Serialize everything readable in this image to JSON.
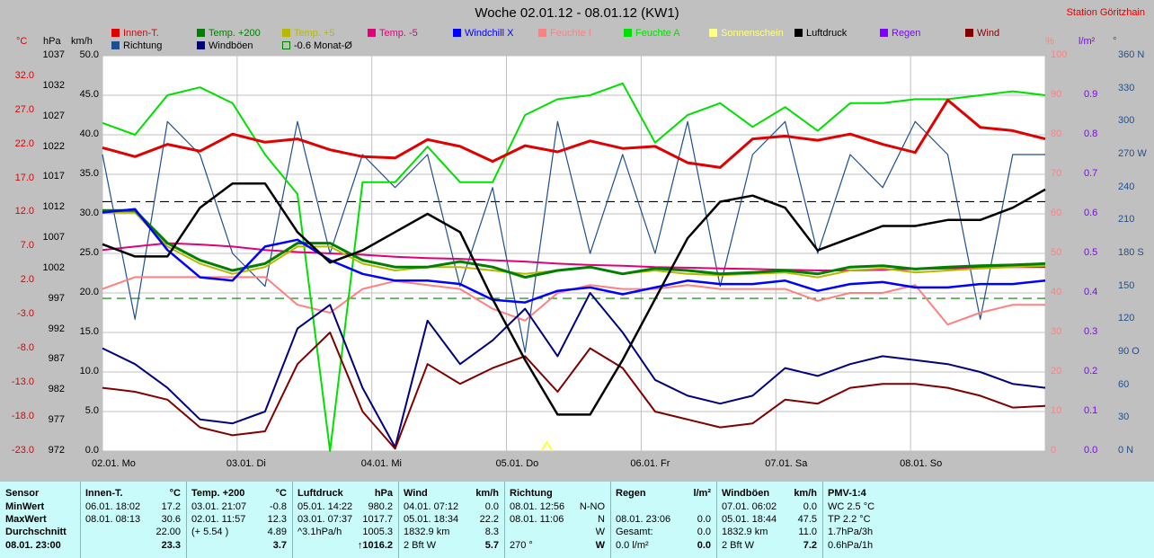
{
  "title": "Woche 02.01.12 - 08.01.12 (KW1)",
  "station": "Station Göritzhain",
  "units": {
    "celsius": "°C",
    "hpa": "hPa",
    "kmh": "km/h",
    "percent": "%",
    "lm2": "l/m²",
    "deg": "°"
  },
  "legend": [
    {
      "label": "Innen-T.",
      "color": "#e00000"
    },
    {
      "label": "Temp. +200",
      "color": "#008000"
    },
    {
      "label": "Temp. +5",
      "color": "#b8b800"
    },
    {
      "label": "Temp. -5",
      "color": "#e0007a"
    },
    {
      "label": "Windchill X",
      "color": "#0000ff"
    },
    {
      "label": "Feuchte I",
      "color": "#ff8080"
    },
    {
      "label": "Feuchte A",
      "color": "#00e000"
    },
    {
      "label": "Sonnenschein",
      "color": "#ffff80"
    },
    {
      "label": "Luftdruck",
      "color": "#000000"
    },
    {
      "label": "Regen",
      "color": "#8000ff"
    },
    {
      "label": "Wind",
      "color": "#800000"
    },
    {
      "label": "Richtung",
      "color": "#1f4f8f"
    },
    {
      "label": "Windböen",
      "color": "#000080"
    },
    {
      "label": "-0.6 Monat-Ø",
      "color": "#008000"
    }
  ],
  "chart_data": {
    "type": "line",
    "x_labels": [
      "02.01. Mo",
      "03.01. Di",
      "04.01. Mi",
      "05.01. Do",
      "06.01. Fr",
      "07.01. Sa",
      "08.01. So"
    ],
    "axes": {
      "temp_c": [
        32.0,
        27.0,
        22.0,
        17.0,
        12.0,
        7.0,
        2.0,
        -3.0,
        -8.0,
        -13.0,
        -18.0,
        -23.0
      ],
      "pressure_hpa": [
        1037,
        1032,
        1027,
        1022,
        1017,
        1012,
        1007,
        1002,
        997,
        992,
        987,
        982,
        977,
        972
      ],
      "wind_kmh": [
        50.0,
        45.0,
        40.0,
        35.0,
        30.0,
        25.0,
        20.0,
        15.0,
        10.0,
        5.0,
        0.0
      ],
      "humidity_pct": [
        100,
        90,
        80,
        70,
        60,
        50,
        40,
        30,
        20,
        10,
        0
      ],
      "rain_lm2": [
        0.9,
        0.8,
        0.7,
        0.6,
        0.5,
        0.4,
        0.3,
        0.2,
        0.1,
        0.0
      ],
      "direction_deg": [
        "360 N",
        "330",
        "300",
        "270 W",
        "240",
        "210",
        "180 S",
        "150",
        "120",
        "90 O",
        "60",
        "30",
        "0 N"
      ]
    },
    "ylim_pressure": [
      972,
      1037
    ],
    "ylim_temp": [
      -23.0,
      35.0
    ],
    "ylim_wind": [
      0,
      50
    ],
    "ylim_humidity": [
      0,
      100
    ],
    "reference_lines": {
      "pressure_mean_hpa": 1013.0,
      "monthly_mean_temp_c": -0.6
    },
    "series": [
      {
        "name": "Innen-T.",
        "unit": "°C",
        "color": "#e00000",
        "values": [
          21.5,
          20.2,
          22.0,
          21.0,
          23.5,
          22.3,
          22.8,
          21.2,
          20.2,
          20.0,
          22.7,
          21.7,
          19.5,
          21.8,
          20.9,
          22.5,
          21.4,
          21.7,
          19.3,
          18.6,
          22.8,
          23.2,
          22.6,
          23.5,
          22.0,
          20.8,
          28.5,
          24.5,
          24.0,
          22.8
        ]
      },
      {
        "name": "Temp. +200",
        "unit": "°C",
        "color": "#008000",
        "values": [
          12.3,
          12.3,
          7.5,
          5.0,
          3.5,
          4.5,
          7.5,
          7.5,
          5.0,
          4.0,
          4.0,
          4.8,
          4.0,
          2.5,
          3.5,
          4.0,
          3.0,
          3.8,
          3.5,
          3.0,
          3.2,
          3.5,
          3.0,
          4.0,
          4.2,
          3.7,
          4.0,
          4.2,
          4.3,
          4.5
        ]
      },
      {
        "name": "Temp. +5",
        "unit": "°C",
        "color": "#b8b800",
        "values": [
          12.0,
          12.0,
          7.0,
          4.5,
          3.0,
          4.0,
          7.0,
          7.0,
          4.5,
          3.5,
          4.0,
          4.0,
          3.5,
          3.0,
          3.5,
          4.0,
          3.0,
          3.5,
          3.0,
          2.8,
          3.0,
          3.2,
          2.5,
          3.5,
          3.8,
          3.2,
          3.5,
          3.8,
          4.0,
          4.2
        ]
      },
      {
        "name": "Temp. -5",
        "unit": "°C",
        "color": "#e0007a",
        "values": [
          6.5,
          7.0,
          7.5,
          7.3,
          7.0,
          6.5,
          6.2,
          6.0,
          5.8,
          5.5,
          5.3,
          5.2,
          5.0,
          4.8,
          4.5,
          4.3,
          4.2,
          4.0,
          3.9,
          3.8,
          3.7,
          3.6,
          3.5,
          3.5,
          3.6,
          3.7,
          3.8,
          3.9,
          4.0,
          4.0
        ]
      },
      {
        "name": "Windchill X",
        "unit": "°C",
        "color": "#0000ff",
        "values": [
          12.0,
          12.5,
          6.5,
          2.5,
          2.0,
          7.0,
          8.0,
          5.0,
          3.0,
          2.0,
          2.0,
          1.5,
          -0.8,
          -1.2,
          0.5,
          1.0,
          0.0,
          1.0,
          2.0,
          1.5,
          1.5,
          2.0,
          0.5,
          1.5,
          1.8,
          1.0,
          1.0,
          1.5,
          1.5,
          2.0
        ]
      },
      {
        "name": "Feuchte I",
        "unit": "%",
        "color": "#ff8080",
        "values": [
          41,
          44,
          44,
          44,
          44,
          44,
          37,
          35,
          41,
          43,
          42,
          41,
          36,
          33,
          40,
          42,
          41,
          41,
          42,
          41,
          41,
          41,
          38,
          40,
          40,
          42,
          32,
          35,
          37,
          37
        ]
      },
      {
        "name": "Feuchte A",
        "unit": "%",
        "color": "#00e000",
        "values": [
          83,
          80,
          90,
          92,
          88,
          75,
          65,
          0,
          68,
          68,
          77,
          68,
          68,
          85,
          89,
          90,
          93,
          78,
          85,
          88,
          82,
          87,
          81,
          88,
          88,
          89,
          89,
          90,
          91,
          90
        ]
      },
      {
        "name": "Luftdruck",
        "unit": "hPa",
        "color": "#000000",
        "values": [
          1006,
          1004,
          1004,
          1012,
          1016,
          1016,
          1008,
          1003,
          1005,
          1008,
          1011,
          1008,
          997,
          987,
          978,
          978,
          987,
          997,
          1007,
          1013,
          1014,
          1012,
          1005,
          1007,
          1009,
          1009,
          1010,
          1010,
          1012,
          1015
        ]
      },
      {
        "name": "Wind",
        "unit": "km/h",
        "color": "#800000",
        "values": [
          8.0,
          7.5,
          6.5,
          3.0,
          2.0,
          2.5,
          11.0,
          15.0,
          5.0,
          0.3,
          11.0,
          8.5,
          10.5,
          12.0,
          7.5,
          13.0,
          10.5,
          5.0,
          4.0,
          3.0,
          3.5,
          6.5,
          6.0,
          8.0,
          8.5,
          8.5,
          8.0,
          7.0,
          5.5,
          5.7
        ]
      },
      {
        "name": "Windböen",
        "unit": "km/h",
        "color": "#000080",
        "values": [
          13.0,
          11.0,
          8.0,
          4.0,
          3.5,
          5.0,
          15.5,
          18.5,
          8.0,
          0.5,
          16.5,
          11.0,
          14.0,
          18.0,
          12.0,
          20.0,
          15.0,
          9.0,
          7.0,
          6.0,
          7.0,
          10.5,
          9.5,
          11.0,
          12.0,
          11.5,
          11.0,
          10.0,
          8.5,
          8.0
        ]
      },
      {
        "name": "Richtung",
        "unit": "°",
        "color": "#1f4f8f",
        "values": [
          270,
          120,
          300,
          270,
          180,
          150,
          300,
          180,
          270,
          240,
          270,
          150,
          240,
          90,
          300,
          180,
          270,
          180,
          300,
          150,
          270,
          300,
          180,
          270,
          240,
          300,
          270,
          120,
          270,
          270
        ]
      }
    ],
    "sunshine_markers_x": [
      3.3
    ]
  },
  "stats": {
    "sensor": {
      "header": "Sensor",
      "rows": [
        "MinWert",
        "MaxWert",
        "Durchschnitt"
      ],
      "footer": "08.01. 23:00"
    },
    "innen": {
      "header": "Innen-T.",
      "unit": "°C",
      "rows": [
        [
          "06.01.  18:02",
          "17.2"
        ],
        [
          "08.01.  08:13",
          "30.6"
        ],
        [
          "",
          "22.00"
        ]
      ],
      "footer": "23.3"
    },
    "temp200": {
      "header": "Temp. +200",
      "unit": "°C",
      "rows": [
        [
          "03.01.  21:07",
          "-0.8"
        ],
        [
          "02.01.  11:57",
          "12.3"
        ],
        [
          "(+ 5.54 )",
          "4.89"
        ]
      ],
      "footer": "3.7"
    },
    "luftdruck": {
      "header": "Luftdruck",
      "unit": "hPa",
      "rows": [
        [
          "05.01.  14:22",
          "980.2"
        ],
        [
          "03.01.  07:37",
          "1017.7"
        ],
        [
          "^3.1hPa/h",
          "1005.3"
        ]
      ],
      "footer": "↑1016.2"
    },
    "wind": {
      "header": "Wind",
      "unit": "km/h",
      "rows": [
        [
          "04.01.  07:12",
          "0.0"
        ],
        [
          "05.01.  18:34",
          "22.2"
        ],
        [
          "1832.9 km",
          "8.3"
        ]
      ],
      "footer_left": "2 Bft W",
      "footer": "5.7"
    },
    "richtung": {
      "header": "Richtung",
      "unit": "",
      "rows": [
        [
          "08.01.  12:56",
          "N-NO"
        ],
        [
          "08.01.  11:06",
          "N"
        ],
        [
          "",
          "W"
        ]
      ],
      "footer_left": "270 °",
      "footer": "W"
    },
    "regen": {
      "header": "Regen",
      "unit": "l/m²",
      "rows": [
        [
          "",
          ""
        ],
        [
          "08.01.  23:06",
          "0.0"
        ],
        [
          "Gesamt:",
          "0.0"
        ]
      ],
      "footer_left": "0.0 l/m²",
      "footer": "0.0"
    },
    "windboeen": {
      "header": "Windböen",
      "unit": "km/h",
      "rows": [
        [
          "07.01.  06:02",
          "0.0"
        ],
        [
          "05.01.  18:44",
          "47.5"
        ],
        [
          "1832.9 km",
          "11.0"
        ]
      ],
      "footer_left": "2 Bft W",
      "footer": "7.2"
    },
    "pmv": {
      "header": "PMV-1:4",
      "rows": [
        "WC 2.5 °C",
        "TP 2.2 °C",
        "1.7hPa/3h"
      ],
      "footer": "0.6hPa/1h"
    }
  }
}
